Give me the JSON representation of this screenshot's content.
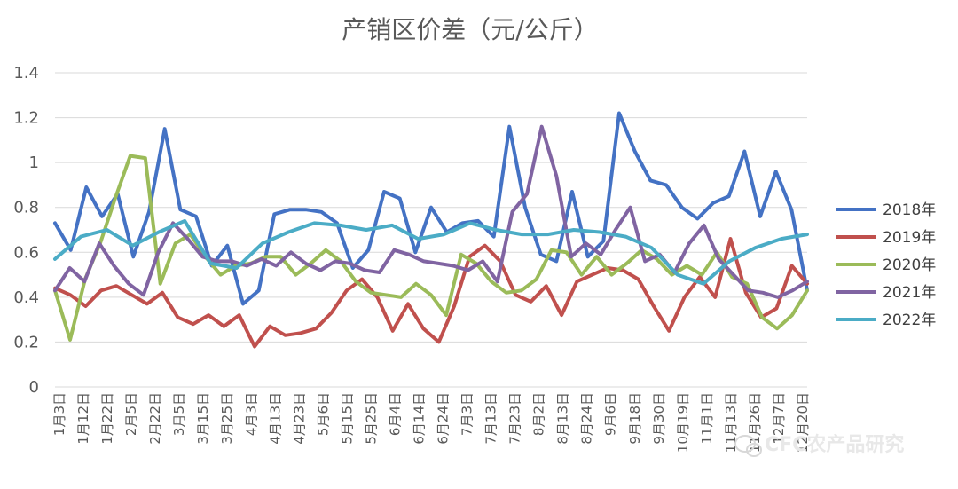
{
  "chart_data": {
    "type": "line",
    "title": "产销区价差（元/公斤）",
    "ylim": [
      0,
      1.4
    ],
    "y_ticks": [
      "0",
      "0.2",
      "0.4",
      "0.6",
      "0.8",
      "1",
      "1.2",
      "1.4"
    ],
    "grid": "horizontal",
    "legend_position": "right",
    "x_labels": [
      "1月3日",
      "1月12日",
      "1月22日",
      "2月5日",
      "2月22日",
      "3月5日",
      "3月15日",
      "3月25日",
      "4月3日",
      "4月13日",
      "4月23日",
      "5月6日",
      "5月15日",
      "5月25日",
      "6月4日",
      "6月14日",
      "6月24日",
      "7月3日",
      "7月13日",
      "7月23日",
      "8月2日",
      "8月13日",
      "8月24日",
      "9月6日",
      "9月18日",
      "9月30日",
      "10月19日",
      "11月1日",
      "11月13日",
      "11月26日",
      "12月7日",
      "12月20日"
    ],
    "series": [
      {
        "name": "2018年",
        "color": "#4472c4",
        "values": [
          0.73,
          0.61,
          0.89,
          0.76,
          0.86,
          0.58,
          0.78,
          1.15,
          0.79,
          0.76,
          0.54,
          0.63,
          0.37,
          0.43,
          0.77,
          0.79,
          0.79,
          0.78,
          0.73,
          0.53,
          0.61,
          0.87,
          0.84,
          0.6,
          0.8,
          0.69,
          0.73,
          0.74,
          0.67,
          1.16,
          0.8,
          0.59,
          0.56,
          0.87,
          0.58,
          0.65,
          1.22,
          1.05,
          0.92,
          0.9,
          0.8,
          0.75,
          0.82,
          0.85,
          1.05,
          0.76,
          0.96,
          0.79,
          0.43
        ]
      },
      {
        "name": "2019年",
        "color": "#c0504d",
        "values": [
          0.44,
          0.41,
          0.36,
          0.43,
          0.45,
          0.41,
          0.37,
          0.42,
          0.31,
          0.28,
          0.32,
          0.27,
          0.32,
          0.18,
          0.27,
          0.23,
          0.24,
          0.26,
          0.33,
          0.43,
          0.48,
          0.4,
          0.25,
          0.37,
          0.26,
          0.2,
          0.36,
          0.58,
          0.63,
          0.56,
          0.41,
          0.38,
          0.45,
          0.32,
          0.47,
          0.5,
          0.53,
          0.52,
          0.48,
          0.36,
          0.25,
          0.4,
          0.49,
          0.4,
          0.66,
          0.42,
          0.31,
          0.35,
          0.54,
          0.46
        ]
      },
      {
        "name": "2020年",
        "color": "#9bbb59",
        "values": [
          0.43,
          0.21,
          0.48,
          0.64,
          0.84,
          1.03,
          1.02,
          0.46,
          0.64,
          0.68,
          0.58,
          0.5,
          0.54,
          0.55,
          0.58,
          0.58,
          0.5,
          0.55,
          0.61,
          0.56,
          0.47,
          0.42,
          0.41,
          0.4,
          0.46,
          0.41,
          0.32,
          0.59,
          0.55,
          0.47,
          0.42,
          0.43,
          0.48,
          0.61,
          0.6,
          0.5,
          0.58,
          0.5,
          0.55,
          0.61,
          0.57,
          0.5,
          0.54,
          0.5,
          0.6,
          0.49,
          0.46,
          0.31,
          0.26,
          0.32,
          0.43
        ]
      },
      {
        "name": "2021年",
        "color": "#8064a2",
        "values": [
          0.43,
          0.53,
          0.47,
          0.64,
          0.54,
          0.46,
          0.41,
          0.6,
          0.73,
          0.66,
          0.58,
          0.56,
          0.56,
          0.54,
          0.57,
          0.54,
          0.6,
          0.55,
          0.52,
          0.56,
          0.55,
          0.52,
          0.51,
          0.61,
          0.59,
          0.56,
          0.55,
          0.54,
          0.52,
          0.56,
          0.47,
          0.78,
          0.86,
          1.16,
          0.94,
          0.58,
          0.64,
          0.59,
          0.7,
          0.8,
          0.56,
          0.59,
          0.51,
          0.64,
          0.72,
          0.57,
          0.5,
          0.43,
          0.42,
          0.4,
          0.43,
          0.47
        ]
      },
      {
        "name": "2022年",
        "color": "#4bacc6",
        "values": [
          0.57,
          0.67,
          0.7,
          0.63,
          0.69,
          0.74,
          0.55,
          0.53,
          0.64,
          0.69,
          0.73,
          0.72,
          0.7,
          0.72,
          0.66,
          0.68,
          0.73,
          0.7,
          0.68,
          0.68,
          0.7,
          0.69,
          0.67,
          0.62,
          0.5,
          0.46,
          0.56,
          0.62,
          0.66,
          0.68
        ]
      }
    ]
  },
  "watermark": "CFC农产品研究",
  "icons": {
    "watermark_logo": "wechat-icon"
  }
}
